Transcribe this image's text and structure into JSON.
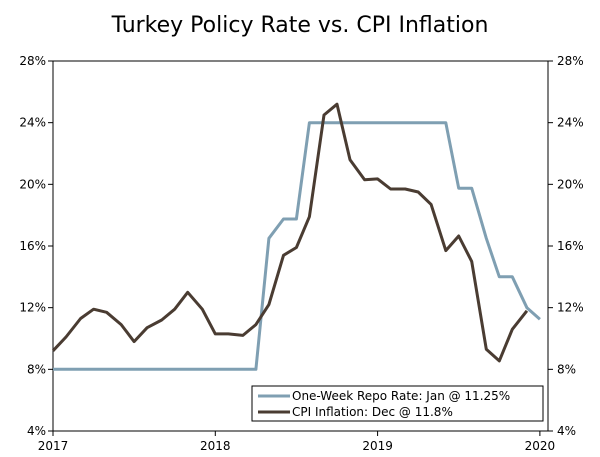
{
  "chart_data": {
    "type": "line",
    "title": "Turkey Policy Rate vs. CPI Inflation",
    "xlabel": "",
    "ylabel": "",
    "xlim": [
      2017.0,
      2020.05
    ],
    "ylim": [
      4,
      28
    ],
    "x_ticks": [
      2017,
      2018,
      2019,
      2020
    ],
    "x_tick_labels": [
      "2017",
      "2018",
      "2019",
      "2020"
    ],
    "y_ticks": [
      4,
      8,
      12,
      16,
      20,
      24,
      28
    ],
    "y_tick_labels": [
      "4%",
      "8%",
      "12%",
      "16%",
      "20%",
      "24%",
      "28%"
    ],
    "dual_y_axis": true,
    "grid": false,
    "legend_position": "bottom-right",
    "series": [
      {
        "name": "One-Week Repo Rate: Jan @ 11.25%",
        "color": "#7f9fb2",
        "points": [
          [
            2017.0,
            8.0
          ],
          [
            2018.25,
            8.0
          ],
          [
            2018.33,
            16.5
          ],
          [
            2018.42,
            17.75
          ],
          [
            2018.5,
            17.75
          ],
          [
            2018.58,
            24.0
          ],
          [
            2019.42,
            24.0
          ],
          [
            2019.5,
            19.75
          ],
          [
            2019.58,
            19.75
          ],
          [
            2019.67,
            16.5
          ],
          [
            2019.75,
            14.0
          ],
          [
            2019.83,
            14.0
          ],
          [
            2019.92,
            12.0
          ],
          [
            2020.0,
            11.25
          ]
        ]
      },
      {
        "name": "CPI Inflation: Dec @ 11.8%",
        "color": "#4a3c32",
        "points": [
          [
            2017.0,
            9.2
          ],
          [
            2017.08,
            10.1
          ],
          [
            2017.17,
            11.3
          ],
          [
            2017.25,
            11.9
          ],
          [
            2017.33,
            11.7
          ],
          [
            2017.42,
            10.9
          ],
          [
            2017.5,
            9.8
          ],
          [
            2017.58,
            10.7
          ],
          [
            2017.67,
            11.2
          ],
          [
            2017.75,
            11.9
          ],
          [
            2017.83,
            13.0
          ],
          [
            2017.92,
            11.9
          ],
          [
            2018.0,
            10.3
          ],
          [
            2018.08,
            10.3
          ],
          [
            2018.17,
            10.2
          ],
          [
            2018.25,
            10.9
          ],
          [
            2018.33,
            12.2
          ],
          [
            2018.42,
            15.4
          ],
          [
            2018.5,
            15.9
          ],
          [
            2018.58,
            17.9
          ],
          [
            2018.67,
            24.5
          ],
          [
            2018.75,
            25.2
          ],
          [
            2018.83,
            21.6
          ],
          [
            2018.92,
            20.3
          ],
          [
            2019.0,
            20.35
          ],
          [
            2019.08,
            19.7
          ],
          [
            2019.17,
            19.7
          ],
          [
            2019.25,
            19.5
          ],
          [
            2019.33,
            18.7
          ],
          [
            2019.42,
            15.7
          ],
          [
            2019.5,
            16.65
          ],
          [
            2019.58,
            15.0
          ],
          [
            2019.67,
            9.3
          ],
          [
            2019.75,
            8.55
          ],
          [
            2019.83,
            10.6
          ],
          [
            2019.92,
            11.8
          ]
        ]
      }
    ]
  }
}
